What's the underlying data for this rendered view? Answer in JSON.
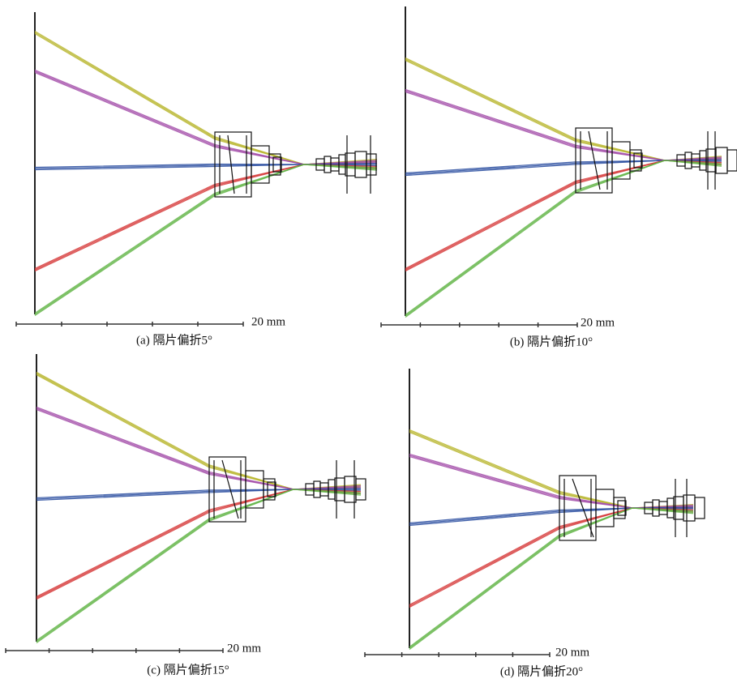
{
  "panels": [
    {
      "caption": "(a) 隔片偏折5°",
      "scale_label": "20 mm"
    },
    {
      "caption": "(b) 隔片偏折10°",
      "scale_label": "20 mm"
    },
    {
      "caption": "(c) 隔片偏折15°",
      "scale_label": "20 mm"
    },
    {
      "caption": "(d) 隔片偏折20°",
      "scale_label": "20 mm"
    }
  ]
}
